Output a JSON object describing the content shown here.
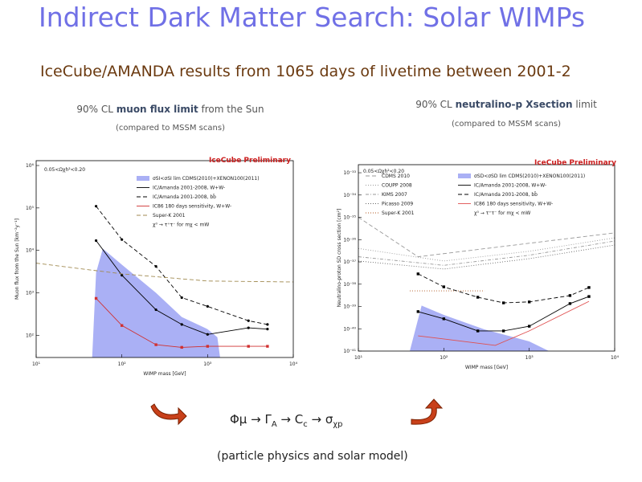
{
  "slide": {
    "title": "Indirect Dark Matter Search: Solar WIMPs",
    "subtitle": "IceCube/AMANDA results from 1065 days of livetime between 2001-2",
    "formula": [
      "Φμ → Γ",
      "A",
      " → C",
      "c",
      " → σ",
      "χp"
    ],
    "caption": "(particle physics and solar model)"
  },
  "chart_data": [
    {
      "type": "line",
      "heading": [
        "90% CL ",
        "muon flux limit",
        " from the Sun"
      ],
      "subheading": "(compared to MSSM scans)",
      "annotation": "0.05<Ωχh²<0.20",
      "preliminary": "IceCube Preliminary",
      "x_label": "WIMP mass [GeV]",
      "y_label": "Muon flux from the Sun [km⁻²y⁻¹]",
      "xscale": "log",
      "yscale": "log",
      "xlim": [
        10,
        10000
      ],
      "ylim": [
        30,
        1300000
      ],
      "xticks": [
        {
          "value": 10,
          "label": "10¹"
        },
        {
          "value": 100,
          "label": "10²"
        },
        {
          "value": 1000,
          "label": "10³"
        },
        {
          "value": 10000,
          "label": "10⁴"
        }
      ],
      "yticks": [
        {
          "value": 100,
          "label": "10²"
        },
        {
          "value": 1000,
          "label": "10³"
        },
        {
          "value": 10000,
          "label": "10⁴"
        },
        {
          "value": 100000,
          "label": "10⁵"
        },
        {
          "value": 1000000,
          "label": "10⁶"
        }
      ],
      "legend_note": "χ⁰ → τ⁺τ⁻ for mχ < mW",
      "series": [
        {
          "name": "σSI<σSI lim CDMS(2010)+XENON100(2011)",
          "style": "area",
          "color": "#aab0f5",
          "x": [
            45,
            50,
            60,
            100,
            250,
            500,
            1000,
            1300,
            1400
          ],
          "values": [
            30,
            3000,
            11000,
            4600,
            1000,
            270,
            140,
            90,
            30
          ]
        },
        {
          "name": "IC/Amanda 2001-2008, W+W-",
          "style": "solid",
          "marker": "circle",
          "color": "#000000",
          "x": [
            50,
            100,
            250,
            500,
            1000,
            3000,
            5000
          ],
          "values": [
            17000,
            2600,
            400,
            180,
            105,
            150,
            140
          ]
        },
        {
          "name": "IC/Amanda 2001-2008, bb̄",
          "style": "dashed",
          "marker": "circle",
          "color": "#000000",
          "x": [
            50,
            100,
            250,
            500,
            1000,
            3000,
            5000
          ],
          "values": [
            110000,
            18000,
            4200,
            770,
            480,
            220,
            180
          ]
        },
        {
          "name": "IC86 180 days sensitivity, W+W-",
          "style": "solid",
          "marker": "square",
          "color": "#d03030",
          "x": [
            50,
            100,
            250,
            500,
            1000,
            3000,
            5000
          ],
          "values": [
            740,
            170,
            60,
            52,
            55,
            55,
            55
          ]
        },
        {
          "name": "Super-K 2001",
          "style": "dashed",
          "color": "#a08a50",
          "x": [
            10,
            100,
            1000,
            10000
          ],
          "values": [
            5000,
            2800,
            1900,
            1800
          ]
        }
      ]
    },
    {
      "type": "line",
      "heading": [
        "90% CL ",
        "neutralino-p Xsection",
        " limit"
      ],
      "subheading": "(compared to MSSM scans)",
      "annotation": "0.05<Ωχh²<0.20",
      "preliminary": "IceCube Preliminary",
      "x_label": "WIMP mass [GeV]",
      "y_label": "Neutralino-proton SD cross section [cm²]",
      "xscale": "log",
      "yscale": "log",
      "xlim": [
        10,
        10000
      ],
      "ylim": [
        1e-41,
        2.3e-33
      ],
      "xticks": [
        {
          "value": 10,
          "label": "10¹"
        },
        {
          "value": 100,
          "label": "10²"
        },
        {
          "value": 1000,
          "label": "10³"
        },
        {
          "value": 10000,
          "label": "10⁴"
        }
      ],
      "yticks": [
        {
          "value": 1e-41,
          "label": "10⁻⁴¹"
        },
        {
          "value": 1e-40,
          "label": "10⁻⁴⁰"
        },
        {
          "value": 1e-39,
          "label": "10⁻³⁹"
        },
        {
          "value": 1e-38,
          "label": "10⁻³⁸"
        },
        {
          "value": 1e-37,
          "label": "10⁻³⁷"
        },
        {
          "value": 1e-36,
          "label": "10⁻³⁶"
        },
        {
          "value": 1e-35,
          "label": "10⁻³⁵"
        },
        {
          "value": 1e-34,
          "label": "10⁻³⁴"
        },
        {
          "value": 1e-33,
          "label": "10⁻³³"
        }
      ],
      "legend_note": "χ⁰ → τ⁺τ⁻ for mχ < mW",
      "series": [
        {
          "name": "CDMS 2010",
          "style": "dashed",
          "color": "#999999",
          "x": [
            10,
            50,
            10000
          ],
          "values": [
            1e-35,
            1.7e-37,
            2e-36
          ]
        },
        {
          "name": "COUPP 2008",
          "style": "dotted",
          "color": "#999999",
          "x": [
            10,
            100,
            1000,
            10000
          ],
          "values": [
            4e-37,
            1.1e-37,
            3e-37,
            1.2e-36
          ]
        },
        {
          "name": "KIMS 2007",
          "style": "dotdash",
          "color": "#999999",
          "x": [
            10,
            100,
            1000,
            10000
          ],
          "values": [
            1.7e-37,
            7e-38,
            2e-37,
            8.7e-37
          ]
        },
        {
          "name": "Picasso 2009",
          "style": "dotted",
          "color": "#666666",
          "x": [
            10,
            100,
            1000,
            10000
          ],
          "values": [
            1.1e-37,
            4.8e-38,
            1.4e-37,
            5.7e-37
          ]
        },
        {
          "name": "Super-K 2001",
          "style": "dotted",
          "color": "#b05a20",
          "x": [
            40,
            100,
            300
          ],
          "values": [
            5e-39,
            5e-39,
            5e-39
          ]
        },
        {
          "name": "σSD<σSD lim CDMS(2010)+XENON100(2011)",
          "style": "area",
          "color": "#aab0f5",
          "x": [
            40,
            55,
            100,
            300,
            1000,
            1700
          ],
          "values": [
            1e-41,
            1.1e-39,
            4.2e-40,
            9.3e-41,
            2.7e-41,
            1e-41
          ]
        },
        {
          "name": "IC/Amanda 2001-2008, W+W-",
          "style": "solid",
          "marker": "square",
          "color": "#000000",
          "x": [
            50,
            100,
            250,
            500,
            1000,
            3000,
            5000
          ],
          "values": [
            5.9e-40,
            2.8e-40,
            8e-41,
            8e-41,
            1.3e-40,
            1.35e-39,
            2.8e-39
          ]
        },
        {
          "name": "IC/Amanda 2001-2008, bb̄",
          "style": "dashed",
          "marker": "square",
          "color": "#000000",
          "x": [
            50,
            100,
            250,
            500,
            1000,
            3000,
            5000
          ],
          "values": [
            2.9e-38,
            7.6e-39,
            2.6e-39,
            1.45e-39,
            1.6e-39,
            3.1e-39,
            7.1e-39
          ]
        },
        {
          "name": "IC86 180 days sensitivity, W+W-",
          "style": "solid",
          "color": "#e05050",
          "x": [
            50,
            100,
            400,
            1000,
            5000
          ],
          "values": [
            4.8e-41,
            3.5e-41,
            1.8e-41,
            8e-41,
            1.7e-39
          ]
        }
      ]
    }
  ]
}
